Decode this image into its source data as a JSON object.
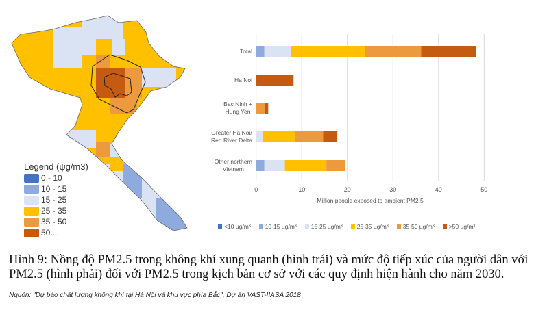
{
  "map": {
    "legend_title": "Legend (ψg/m3)",
    "legend": [
      {
        "label": "0 - 10",
        "color": "#4472C4"
      },
      {
        "label": "10 - 15",
        "color": "#8FAADC"
      },
      {
        "label": "15 - 25",
        "color": "#DAE3F3"
      },
      {
        "label": "25 - 35",
        "color": "#FFC000"
      },
      {
        "label": "35 - 50",
        "color": "#ED9A3F"
      },
      {
        "label": "50...",
        "color": "#C55A11"
      }
    ]
  },
  "chart_data": {
    "type": "bar",
    "orientation": "horizontal",
    "stacked": true,
    "categories": [
      "Total",
      "Ha Noi",
      "Bac Ninh +\nHung Yen",
      "Greater Ha Noi/\nRed River Delta",
      "Other northern\nVietnam"
    ],
    "series": [
      {
        "name": "<10 µg/m³",
        "color": "#4472C4",
        "values": [
          0,
          0,
          0,
          0,
          0
        ]
      },
      {
        "name": "10-15  µg/m³",
        "color": "#8FAADC",
        "values": [
          1.8,
          0,
          0,
          0,
          1.8
        ]
      },
      {
        "name": "15-25 µg/m³",
        "color": "#DAE3F3",
        "values": [
          5.9,
          0,
          0,
          1.4,
          4.5
        ]
      },
      {
        "name": "25-35 µg/m³",
        "color": "#FFC000",
        "values": [
          16.2,
          0,
          0,
          7.2,
          9.1
        ]
      },
      {
        "name": "35-50 µg/m³",
        "color": "#ED9A3F",
        "values": [
          12.3,
          0,
          2.0,
          6.1,
          4.2
        ]
      },
      {
        "name": ">50 µg/m³",
        "color": "#C55A11",
        "values": [
          12.0,
          8.2,
          0.65,
          3.1,
          0
        ]
      }
    ],
    "xlabel": "Million people exposed to ambient PM2.5",
    "xlim": [
      0,
      50
    ],
    "xticks": [
      "0",
      "10",
      "20",
      "30",
      "40",
      "50"
    ],
    "grid": true,
    "legend_position": "bottom"
  },
  "caption": "Hình 9: Nồng độ PM2.5 trong không khí xung quanh (hình trái) và mức độ tiếp xúc của người dân với PM2.5 (hình phải) đối với PM2.5 trong kịch bản cơ sở với các quy định hiện hành cho năm 2030.",
  "source": "Nguồn: \"Dự báo chất lượng không khí tại Hà Nội và khu vực phía Bắc\", Dự án VAST-IIASA 2018"
}
